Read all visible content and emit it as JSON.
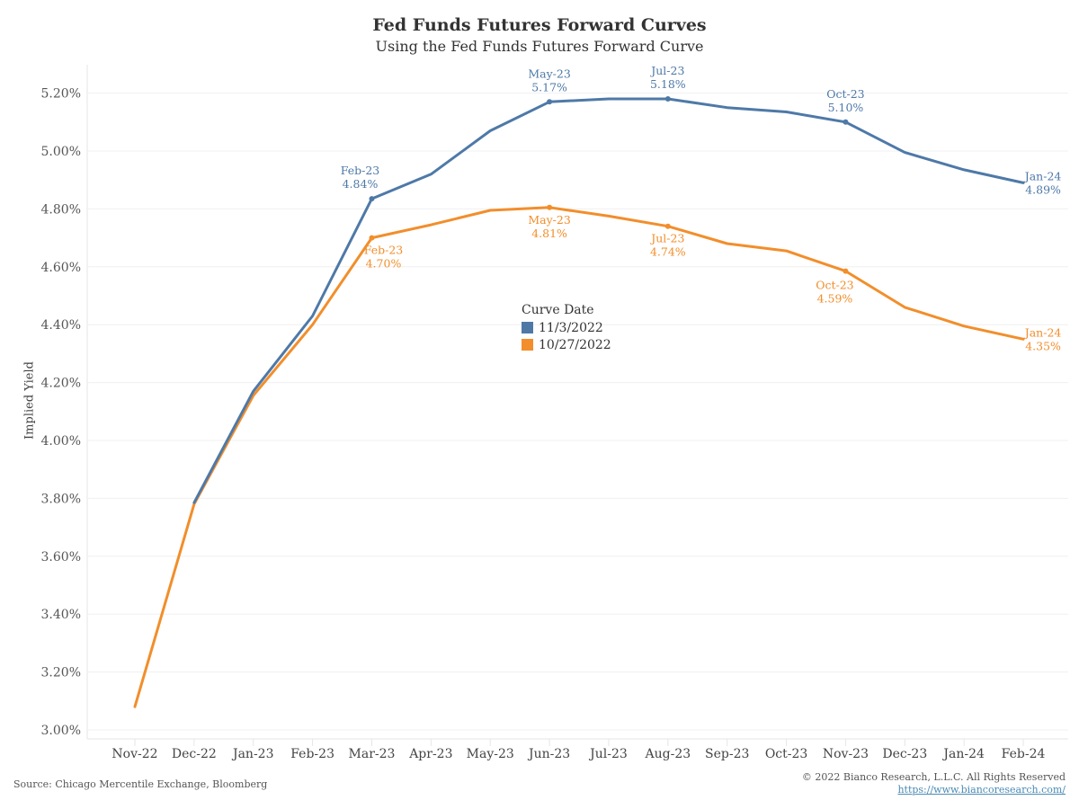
{
  "header": {
    "title": "Fed Funds Futures Forward Curves",
    "subtitle": "Using the Fed Funds Futures Forward Curve"
  },
  "footer": {
    "source": "Source: Chicago Mercentile Exchange, Bloomberg",
    "copyright": "© 2022 Bianco Research, L.L.C. All Rights Reserved",
    "url": "https://www.biancoresearch.com/"
  },
  "legend": {
    "title": "Curve Date",
    "items": [
      {
        "label": "11/3/2022",
        "color": "#4e79a7"
      },
      {
        "label": "10/27/2022",
        "color": "#f28e2b"
      }
    ]
  },
  "chart_data": {
    "type": "line",
    "title": "Fed Funds Futures Forward Curves",
    "subtitle": "Using the Fed Funds Futures Forward Curve",
    "xlabel": "",
    "ylabel": "Implied Yield",
    "ylim": [
      2.97,
      5.28
    ],
    "yticks": [
      "3.00%",
      "3.20%",
      "3.40%",
      "3.60%",
      "3.80%",
      "4.00%",
      "4.20%",
      "4.40%",
      "4.60%",
      "4.80%",
      "5.00%",
      "5.20%"
    ],
    "ytick_values": [
      3.0,
      3.2,
      3.4,
      3.6,
      3.8,
      4.0,
      4.2,
      4.4,
      4.6,
      4.8,
      5.0,
      5.2
    ],
    "grid": true,
    "legend_position": "center",
    "categories": [
      "Nov-22",
      "Dec-22",
      "Jan-23",
      "Feb-23",
      "Mar-23",
      "Apr-23",
      "May-23",
      "Jun-23",
      "Jul-23",
      "Aug-23",
      "Sep-23",
      "Oct-23",
      "Nov-23",
      "Dec-23",
      "Jan-24",
      "Feb-24"
    ],
    "series": [
      {
        "name": "11/3/2022",
        "color": "#4e79a7",
        "values": [
          null,
          3.785,
          4.17,
          4.43,
          4.835,
          4.92,
          5.07,
          5.17,
          5.18,
          5.18,
          5.15,
          5.135,
          5.1,
          4.995,
          4.935,
          4.89
        ],
        "annotations": [
          {
            "index": 4,
            "line1": "Feb-23",
            "line2": "4.84%",
            "pos": "above-left"
          },
          {
            "index": 7,
            "line1": "May-23",
            "line2": "5.17%",
            "pos": "above"
          },
          {
            "index": 9,
            "line1": "Jul-23",
            "line2": "5.18%",
            "pos": "above"
          },
          {
            "index": 12,
            "line1": "Oct-23",
            "line2": "5.10%",
            "pos": "above"
          },
          {
            "index": 15,
            "line1": "Jan-24",
            "line2": "4.89%",
            "pos": "right"
          }
        ]
      },
      {
        "name": "10/27/2022",
        "color": "#f28e2b",
        "values": [
          3.08,
          3.78,
          4.155,
          4.4,
          4.7,
          4.745,
          4.795,
          4.805,
          4.775,
          4.74,
          4.68,
          4.655,
          4.585,
          4.46,
          4.395,
          4.35
        ],
        "annotations": [
          {
            "index": 4,
            "line1": "Feb-23",
            "line2": "4.70%",
            "pos": "below-right"
          },
          {
            "index": 7,
            "line1": "May-23",
            "line2": "4.81%",
            "pos": "below"
          },
          {
            "index": 9,
            "line1": "Jul-23",
            "line2": "4.74%",
            "pos": "below"
          },
          {
            "index": 12,
            "line1": "Oct-23",
            "line2": "4.59%",
            "pos": "below-left"
          },
          {
            "index": 15,
            "line1": "Jan-24",
            "line2": "4.35%",
            "pos": "right"
          }
        ]
      }
    ]
  }
}
